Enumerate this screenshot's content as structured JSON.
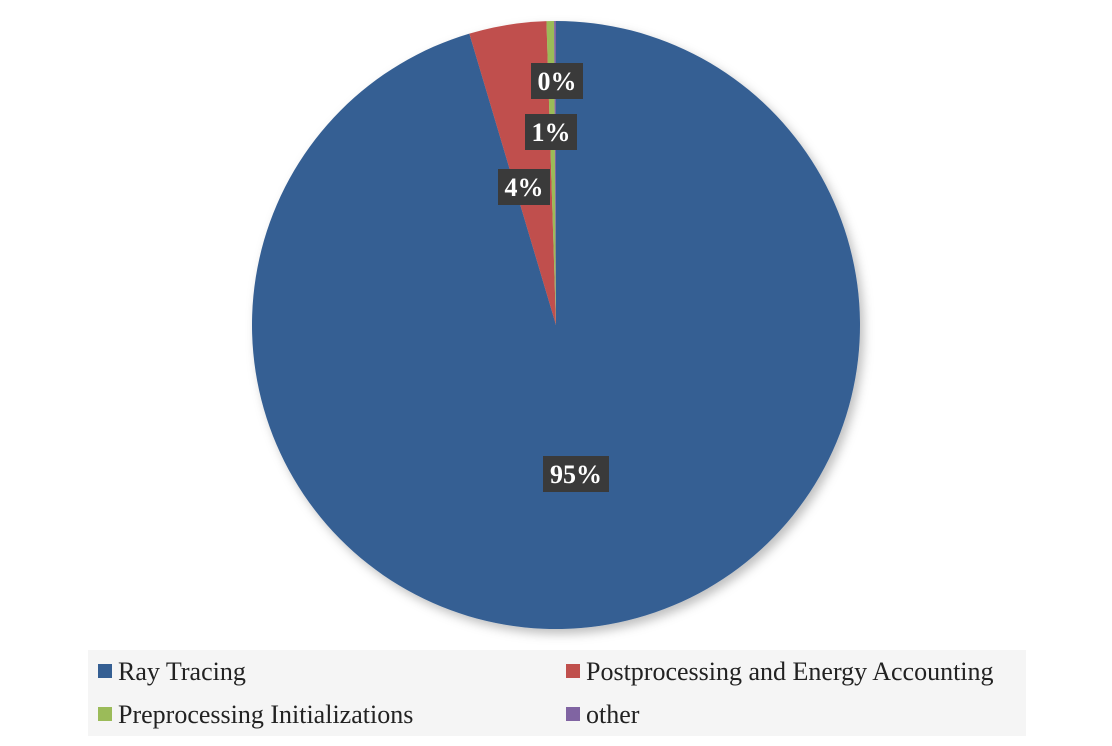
{
  "chart_data": {
    "type": "pie",
    "title": "",
    "slices": [
      {
        "label": "Ray Tracing",
        "value": 95,
        "display": "95%",
        "color": "#355f93"
      },
      {
        "label": "Postprocessing and Energy Accounting",
        "value": 4,
        "display": "4%",
        "color": "#c0504d"
      },
      {
        "label": "Preprocessing Initializations",
        "value": 1,
        "display": "1%",
        "color": "#9bbb59"
      },
      {
        "label": "other",
        "value": 0,
        "display": "0%",
        "color": "#8064a2"
      }
    ],
    "legend_position": "bottom",
    "data_label_style": "dark boxes"
  }
}
